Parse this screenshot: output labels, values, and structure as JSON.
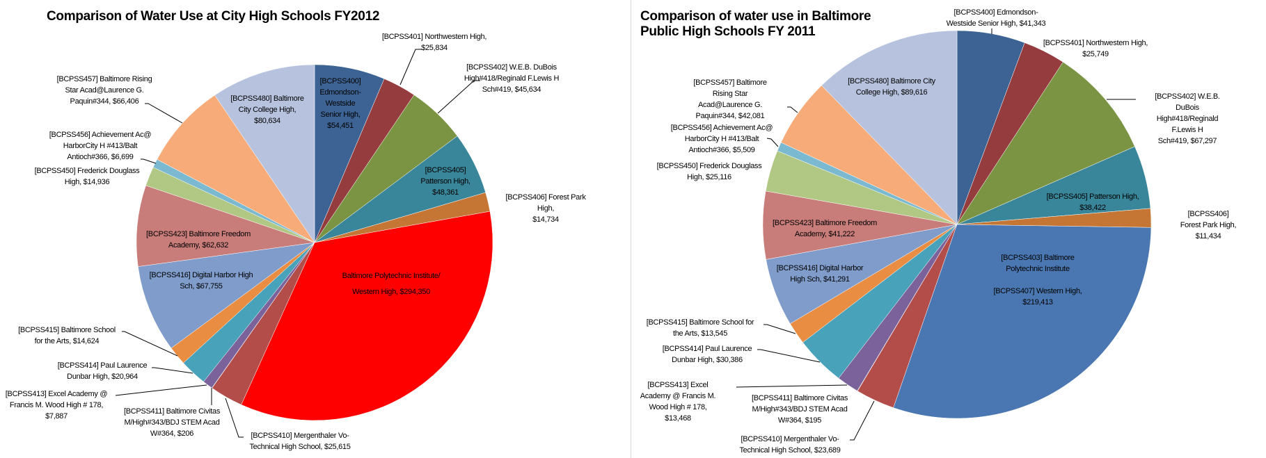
{
  "chart_data": [
    {
      "type": "pie",
      "title": "Comparison of Water Use at City High Schools FY2012",
      "start": "12 o'clock, clockwise",
      "slices": [
        {
          "label": "[BCPSS400]\nEdmondson-\nWestside\nSenior High,\n$54,451",
          "value": 54451,
          "color": "#3c6393"
        },
        {
          "label": "[BCPSS401] Northwestern  High,\n$25,834",
          "value": 25834,
          "color": "#953c3e"
        },
        {
          "label": "[BCPSS402] W.E.B.  DuBois\nHigh#418/Reginald F.Lewis H\nSch#419, $45,634",
          "value": 45634,
          "color": "#7a9443"
        },
        {
          "label": "[BCPSS405]\nPatterson High,\n$48,361",
          "value": 48361,
          "color": "#39869a"
        },
        {
          "label": "[BCPSS406] Forest Park High,\n$14,734",
          "value": 14734,
          "color": "#c57634"
        },
        {
          "label": "Baltimore Polytechnic Institute/\nWestern High, $294,350",
          "value": 294350,
          "color": "#ff0000"
        },
        {
          "label": "[BCPSS410] Mergenthaler Vo-\nTechnical High School, $25,615",
          "value": 25615,
          "color": "#b34d49"
        },
        {
          "label": "[BCPSS411] Baltimore Civitas\nM/High#343/BDJ STEM  Acad\nW#364, $206",
          "value": 206,
          "color": "#8a8a8a"
        },
        {
          "label": "[BCPSS413] Excel Academy @\nFrancis M. Wood High # 178,\n$7,887",
          "value": 7887,
          "color": "#7b629b"
        },
        {
          "label": "[BCPSS414] Paul Laurence\nDunbar High, $20,964",
          "value": 20964,
          "color": "#47a2ba"
        },
        {
          "label": "[BCPSS415] Baltimore School\nfor the Arts, $14,624",
          "value": 14624,
          "color": "#e98d43"
        },
        {
          "label": "[BCPSS416] Digital Harbor High\nSch, $67,755",
          "value": 67755,
          "color": "#7f9cca"
        },
        {
          "label": "[BCPSS423] Baltimore Freedom\nAcademy, $62,632",
          "value": 62632,
          "color": "#c97d7b"
        },
        {
          "label": "[BCPSS450] Frederick Douglass\nHigh, $14,936",
          "value": 14936,
          "color": "#b1c784"
        },
        {
          "label": "[BCPSS456] Achievement  Ac@\nHarborCity H #413/Balt\nAntioch#366, $6,699",
          "value": 6699,
          "color": "#7bb9d1"
        },
        {
          "label": "[BCPSS457] Baltimore Rising\nStar Acad@Laurence G.\nPaquin#344, $66,406",
          "value": 66406,
          "color": "#f7ab79"
        },
        {
          "label": "[BCPSS480] Baltimore\nCity College High,\n$80,634",
          "value": 80634,
          "color": "#b7c3de"
        }
      ]
    },
    {
      "type": "pie",
      "title": "Comparison of water use in Baltimore\nPublic High Schools FY 2011",
      "start": "12 o'clock, clockwise",
      "slices": [
        {
          "label": "[BCPSS400] Edmondson-\nWestside Senior High, $41,343",
          "value": 41343,
          "color": "#3c6393"
        },
        {
          "label": "[BCPSS401] Northwestern  High,\n$25,749",
          "value": 25749,
          "color": "#953c3e"
        },
        {
          "label": "[BCPSS402] W.E.B.  DuBois\nHigh#418/Reginald F.Lewis H\nSch#419, $67,297",
          "value": 67297,
          "color": "#7a9443"
        },
        {
          "label": "[BCPSS405] Patterson High,\n$38,422",
          "value": 38422,
          "color": "#39869a"
        },
        {
          "label": "[BCPSS406] Forest Park High,\n$11,434",
          "value": 11434,
          "color": "#c57634"
        },
        {
          "label": "[BCPSS403] Baltimore\nPolytechnic Institute\n\n[BCPSS407] Western High,\n$219,413",
          "value": 219413,
          "color": "#4a77b1"
        },
        {
          "label": "[BCPSS410] Mergenthaler Vo-\nTechnical High School, $23,689",
          "value": 23689,
          "color": "#b34d49"
        },
        {
          "label": "[BCPSS411] Baltimore Civitas\nM/High#343/BDJ STEM  Acad\nW#364, $195",
          "value": 195,
          "color": "#8a8a8a"
        },
        {
          "label": "[BCPSS413] Excel\nAcademy @ Francis M.\nWood High # 178,\n$13,468",
          "value": 13468,
          "color": "#7b629b"
        },
        {
          "label": "[BCPSS414] Paul Laurence\nDunbar High, $30,386",
          "value": 30386,
          "color": "#47a2ba"
        },
        {
          "label": "[BCPSS415] Baltimore School for\nthe Arts, $13,545",
          "value": 13545,
          "color": "#e98d43"
        },
        {
          "label": "[BCPSS416] Digital Harbor\nHigh Sch, $41,291",
          "value": 41291,
          "color": "#7f9cca"
        },
        {
          "label": "[BCPSS423] Baltimore Freedom\nAcademy, $41,222",
          "value": 41222,
          "color": "#c97d7b"
        },
        {
          "label": "[BCPSS450] Frederick Douglass\nHigh, $25,116",
          "value": 25116,
          "color": "#b1c784"
        },
        {
          "label": "[BCPSS456] Achievement  Ac@\nHarborCity H #413/Balt\nAntioch#366, $5,509",
          "value": 5509,
          "color": "#7bb9d1"
        },
        {
          "label": "[BCPSS457] Baltimore\nRising Star\nAcad@Laurence G.\nPaquin#344, $42,081",
          "value": 42081,
          "color": "#f7ab79"
        },
        {
          "label": "[BCPSS480] Baltimore City\nCollege High, $89,616",
          "value": 89616,
          "color": "#b7c3de"
        }
      ]
    }
  ]
}
